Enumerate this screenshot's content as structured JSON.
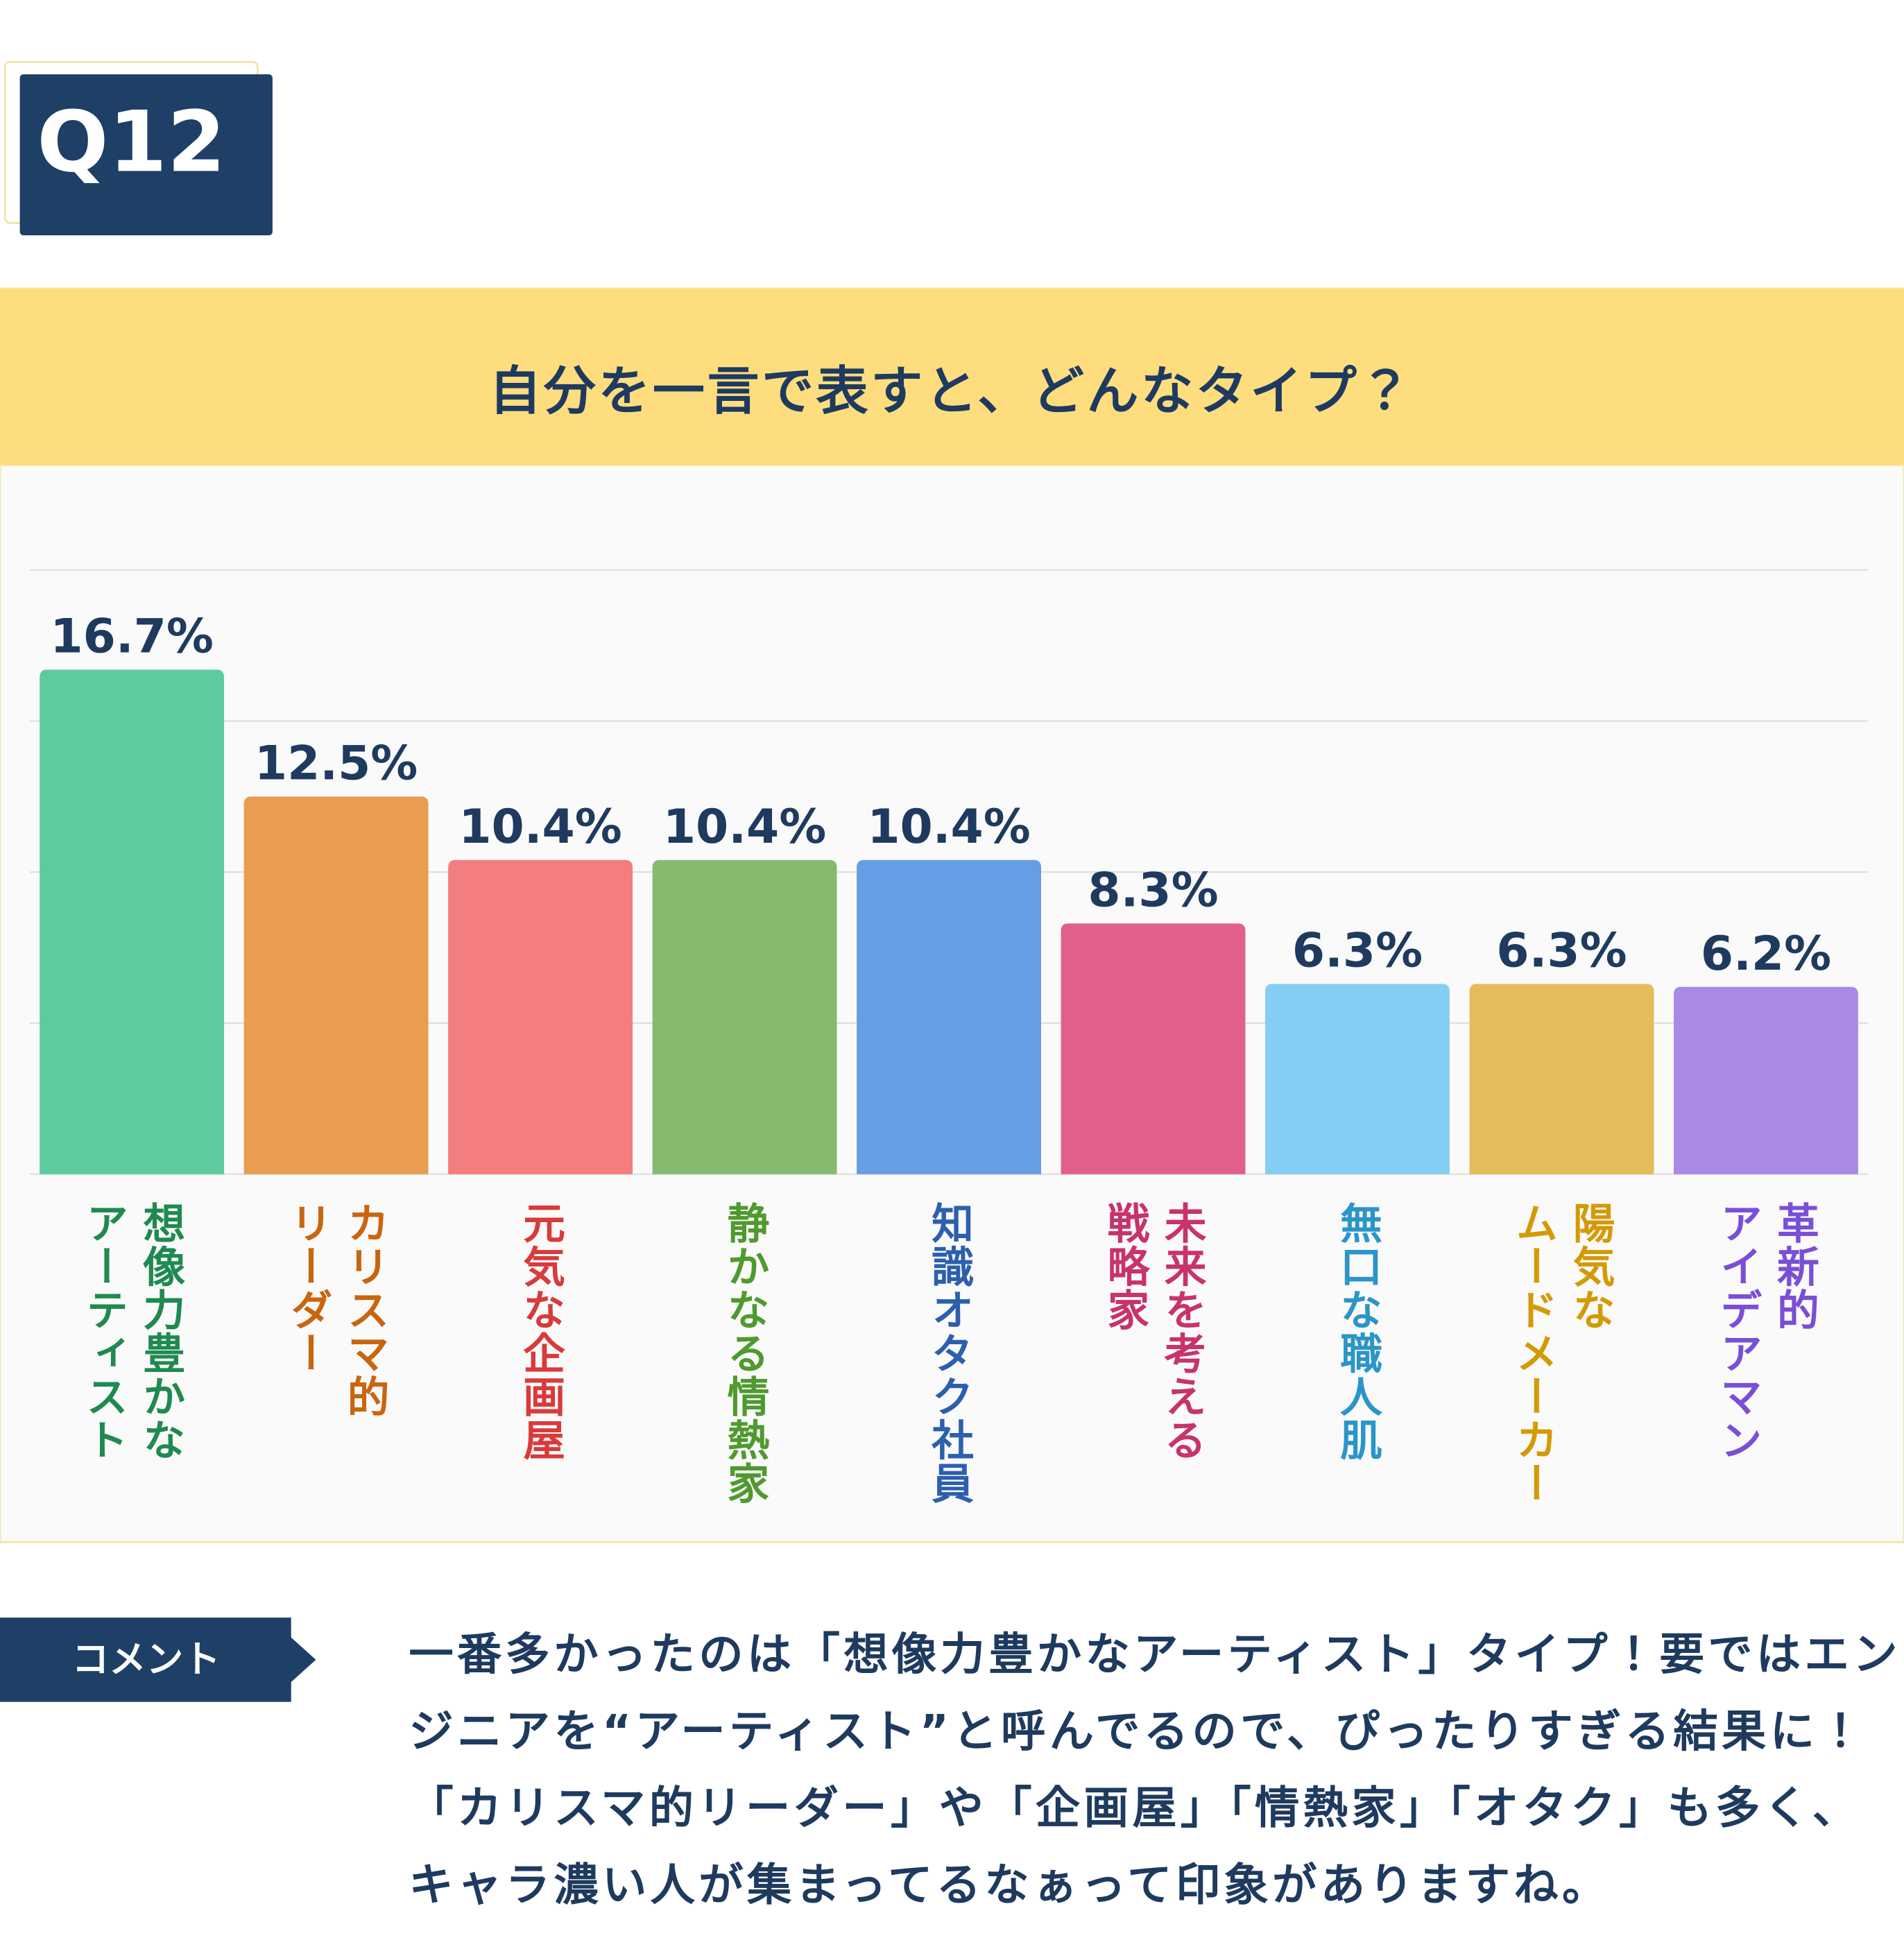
{
  "badge": "Q12",
  "chart_data": {
    "type": "bar",
    "title": "自分を一言で表すと、どんなタイプ？",
    "categories": [
      [
        "想像力豊かな",
        "アーティスト"
      ],
      [
        "カリスマ的",
        "リーダー"
      ],
      [
        "元気な企画屋"
      ],
      [
        "静かなる情熱家"
      ],
      [
        "知識オタク社員"
      ],
      [
        "未来を考える",
        "戦略家"
      ],
      [
        "無口な職人肌"
      ],
      [
        "陽気な",
        "ムードメーカー"
      ],
      [
        "革新的",
        "アイデアマン"
      ]
    ],
    "values": [
      16.7,
      12.5,
      10.4,
      10.4,
      10.4,
      8.3,
      6.3,
      6.3,
      6.2
    ],
    "value_labels": [
      "16.7%",
      "12.5%",
      "10.4%",
      "10.4%",
      "10.4%",
      "8.3%",
      "6.3%",
      "6.3%",
      "6.2%"
    ],
    "colors": [
      "#5ecb9e",
      "#e89d50",
      "#f47e7e",
      "#86bb6f",
      "#659ee3",
      "#e0608b",
      "#85cef3",
      "#e4bd5a",
      "#a98ae4"
    ],
    "label_colors": [
      "#1f8a50",
      "#c9650e",
      "#d93a3a",
      "#4f9a2e",
      "#2c5fae",
      "#c8336b",
      "#2b95c9",
      "#d49a06",
      "#7a4fd6"
    ],
    "ylim": [
      0,
      23
    ],
    "yticks": [
      0,
      5,
      10,
      15,
      20
    ],
    "grid": true
  },
  "comment": {
    "label": "コメント",
    "text": "一番多かったのは「想像力豊かなアーティスト」タイプ！要ではエンジニアを“アーティスト”と呼んでるので、ぴったりすぎる結果に！「カリスマ的リーダー」や「企画屋」「情熱家」「オタク」も多く、キャラ濃い人が集まってるなぁって印象がありますね。"
  }
}
